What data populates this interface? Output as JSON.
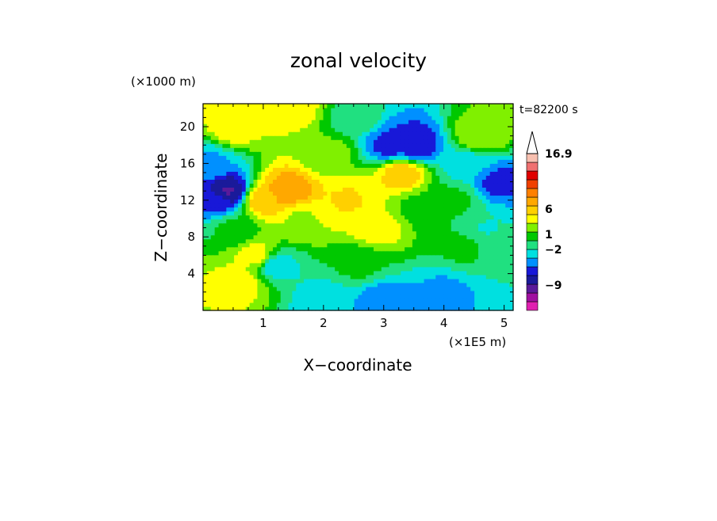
{
  "chart_data": {
    "type": "heatmap",
    "title": "zonal velocity",
    "xlabel": "X−coordinate",
    "ylabel": "Z−coordinate",
    "x_unit": "(×1E5 m)",
    "y_unit": "(×1000 m)",
    "time_label": "t=82200 s",
    "xlim": [
      0,
      5.15
    ],
    "ylim": [
      0,
      22.5
    ],
    "x_ticks": [
      {
        "value": 1,
        "label": "1"
      },
      {
        "value": 2,
        "label": "2"
      },
      {
        "value": 3,
        "label": "3"
      },
      {
        "value": 4,
        "label": "4"
      },
      {
        "value": 5,
        "label": "5"
      }
    ],
    "y_ticks": [
      {
        "value": 4,
        "label": "4"
      },
      {
        "value": 8,
        "label": "8"
      },
      {
        "value": 12,
        "label": "12"
      },
      {
        "value": 16,
        "label": "16"
      },
      {
        "value": 20,
        "label": "20"
      }
    ],
    "colorbar": {
      "colors": [
        "#e020b0",
        "#a010a0",
        "#5a1a9a",
        "#1a1a9a",
        "#1818d8",
        "#0090ff",
        "#00e0e0",
        "#20e080",
        "#00c800",
        "#80f000",
        "#ffff00",
        "#ffd000",
        "#ffa800",
        "#ff8000",
        "#f04000",
        "#e00000",
        "#f07070",
        "#f8c0b0"
      ],
      "labels": [
        {
          "value": 16.9,
          "label": "16.9"
        },
        {
          "value": 6,
          "label": "6"
        },
        {
          "value": 1,
          "label": "1"
        },
        {
          "value": -2,
          "label": "−2"
        },
        {
          "value": -9,
          "label": "−9"
        }
      ],
      "min": -14,
      "max": 16.9
    },
    "grid": false,
    "legend": "right",
    "field_features": [
      {
        "x": 0.4,
        "z": 13,
        "value": -9
      },
      {
        "x": 0.2,
        "z": 12,
        "value": -6
      },
      {
        "x": 0.5,
        "z": 9,
        "value": 0
      },
      {
        "x": 0.6,
        "z": 3,
        "value": 4
      },
      {
        "x": 0.5,
        "z": 20,
        "value": 4
      },
      {
        "x": 1.4,
        "z": 13,
        "value": 8
      },
      {
        "x": 1.0,
        "z": 12,
        "value": 6
      },
      {
        "x": 1.6,
        "z": 10,
        "value": 3
      },
      {
        "x": 2.4,
        "z": 12,
        "value": 5
      },
      {
        "x": 2.9,
        "z": 9,
        "value": 4
      },
      {
        "x": 3.3,
        "z": 15,
        "value": 6
      },
      {
        "x": 3.1,
        "z": 18,
        "value": -6
      },
      {
        "x": 3.5,
        "z": 18,
        "value": -7
      },
      {
        "x": 4.9,
        "z": 14,
        "value": -6
      },
      {
        "x": 4.6,
        "z": 19,
        "value": 3
      },
      {
        "x": 4.3,
        "z": 7,
        "value": 0
      },
      {
        "x": 3.0,
        "z": 1,
        "value": -5
      },
      {
        "x": 2.0,
        "z": 1,
        "value": -3
      },
      {
        "x": 4.0,
        "z": 2,
        "value": -4
      },
      {
        "x": 1.5,
        "z": 22,
        "value": 4
      },
      {
        "x": 2.5,
        "z": 21,
        "value": -1
      },
      {
        "x": 3.6,
        "z": 11,
        "value": 1
      },
      {
        "x": 4.7,
        "z": 9,
        "value": -2
      },
      {
        "x": 0.9,
        "z": 6,
        "value": 4
      },
      {
        "x": 1.2,
        "z": 5,
        "value": -3
      },
      {
        "x": 2.6,
        "z": 5,
        "value": 0
      },
      {
        "x": 0.1,
        "z": 16,
        "value": -4
      },
      {
        "x": 4.2,
        "z": 12,
        "value": 0
      },
      {
        "x": 2.1,
        "z": 17,
        "value": 2
      },
      {
        "x": 4.4,
        "z": 16,
        "value": -3
      }
    ]
  }
}
